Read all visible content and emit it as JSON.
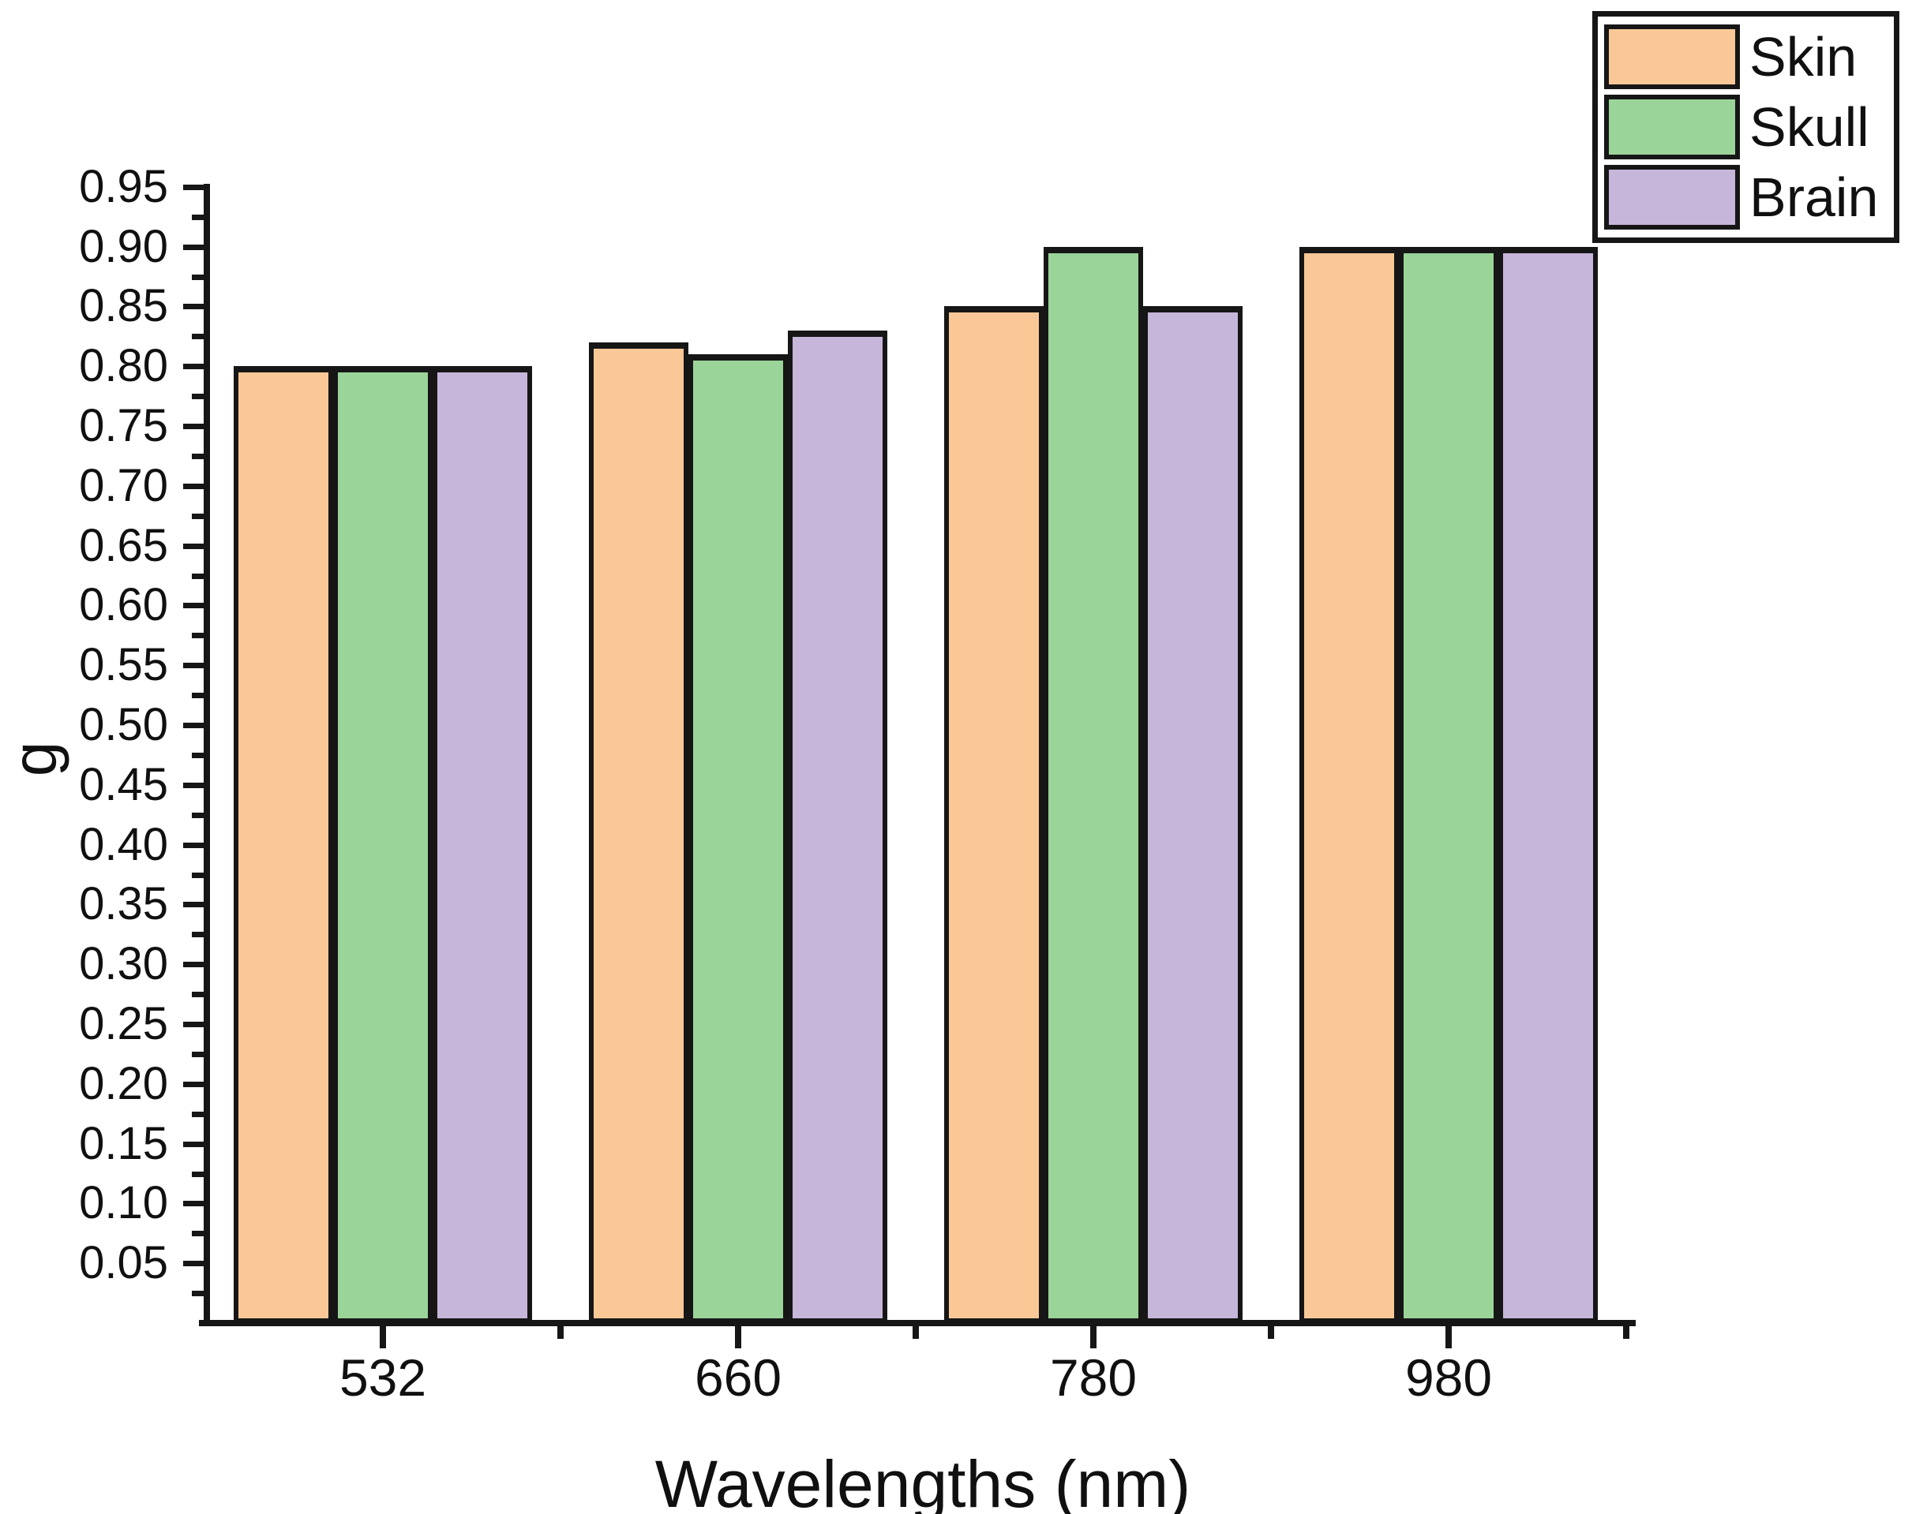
{
  "figure": {
    "background": "#ffffff",
    "axis_color": "#161616",
    "text_color": "#101010"
  },
  "chart_data": {
    "type": "bar",
    "title": "",
    "xlabel": "Wavelengths (nm)",
    "ylabel": "g",
    "categories": [
      "532",
      "660",
      "780",
      "980"
    ],
    "series": [
      {
        "name": "Skin",
        "color": "#FAC897",
        "values": [
          0.8,
          0.82,
          0.85,
          0.9
        ]
      },
      {
        "name": "Skull",
        "color": "#9AD499",
        "values": [
          0.8,
          0.81,
          0.9,
          0.9
        ]
      },
      {
        "name": "Brain",
        "color": "#C6B6D9",
        "values": [
          0.8,
          0.83,
          0.85,
          0.9
        ]
      }
    ],
    "ylim": [
      0,
      0.95
    ],
    "ytick_step": 0.05,
    "ytick_labels": [
      "0.05",
      "0.10",
      "0.15",
      "0.20",
      "0.25",
      "0.30",
      "0.35",
      "0.40",
      "0.45",
      "0.50",
      "0.55",
      "0.60",
      "0.65",
      "0.70",
      "0.75",
      "0.80",
      "0.85",
      "0.90",
      "0.95"
    ],
    "grid": false,
    "legend_position": "top-right",
    "bar_border_color": "#161616"
  }
}
